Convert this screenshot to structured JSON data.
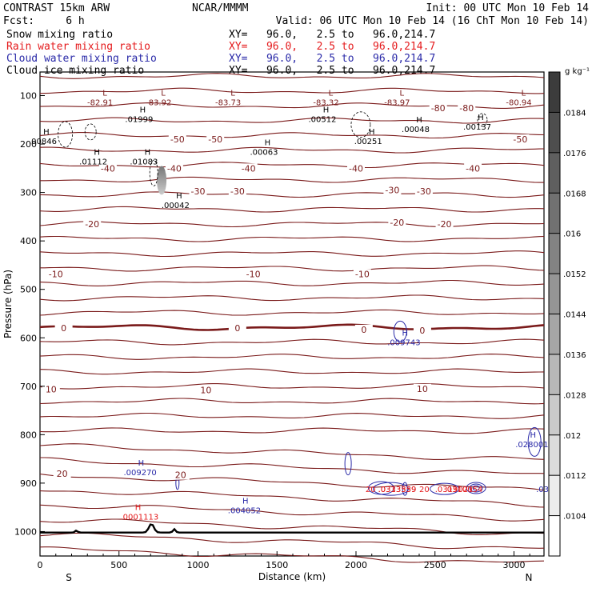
{
  "header": {
    "model": "CONTRAST 15km ARW",
    "org": "NCAR/MMMM",
    "init": "Init: 00 UTC Mon 10 Feb 14",
    "fcst": "Fcst:     6 h",
    "valid": "Valid: 06 UTC Mon 10 Feb 14 (16 ChT Mon 10 Feb 14)",
    "xy": "XY=   96.0,   2.5 to   96.0,214.7"
  },
  "legend": [
    {
      "label": "Snow mixing ratio",
      "color": "#000000"
    },
    {
      "label": "Rain water mixing ratio",
      "color": "#e41a1c"
    },
    {
      "label": "Cloud water mixing ratio",
      "color": "#2a2aa8"
    },
    {
      "label": "Cloud ice mixing ratio",
      "color": "#000000"
    }
  ],
  "colors": {
    "temperature": "#7a1a1a",
    "rain": "#e41a1c",
    "cloudwater": "#2a2aa8",
    "snow": "#000000",
    "terrain": "#000000"
  },
  "chart_data": {
    "type": "contour",
    "xlabel": "Distance (km)",
    "ylabel": "Pressure (hPa)",
    "xlim": [
      0,
      3190
    ],
    "ylim": [
      1040,
      50
    ],
    "x_ticks": [
      0,
      500,
      1000,
      1500,
      2000,
      2500,
      3000
    ],
    "x_tick_labels": [
      "0",
      "500",
      "1000",
      "1500",
      "2000",
      "2500",
      "3000"
    ],
    "y_ticks": [
      100,
      200,
      300,
      400,
      500,
      600,
      700,
      800,
      900,
      1000
    ],
    "y_tick_labels": [
      "100",
      "200",
      "300",
      "400",
      "500",
      "600",
      "700",
      "800",
      "900",
      "1000"
    ],
    "x_end_labels": {
      "left": "S",
      "right": "N"
    },
    "colorbar": {
      "unit": "g kg⁻¹",
      "ticks": [
        0.0184,
        0.0176,
        0.0168,
        0.016,
        0.0152,
        0.0144,
        0.0136,
        0.0128,
        0.012,
        0.0112,
        0.0104
      ],
      "tick_labels": [
        ".0184",
        ".0176",
        ".0168",
        ".016",
        ".0152",
        ".0144",
        ".0136",
        ".0128",
        ".012",
        ".0112",
        ".0104"
      ]
    },
    "temperature_contour_labels": [
      {
        "text": "-80",
        "x": 2520,
        "p": 126
      },
      {
        "text": "-80",
        "x": 2700,
        "p": 126
      },
      {
        "text": "-50",
        "x": 870,
        "p": 190
      },
      {
        "text": "-50",
        "x": 1110,
        "p": 190
      },
      {
        "text": "-50",
        "x": 3040,
        "p": 190
      },
      {
        "text": "-40",
        "x": 430,
        "p": 250
      },
      {
        "text": "-40",
        "x": 850,
        "p": 250
      },
      {
        "text": "-40",
        "x": 1320,
        "p": 250
      },
      {
        "text": "-40",
        "x": 2000,
        "p": 250
      },
      {
        "text": "-40",
        "x": 2740,
        "p": 250
      },
      {
        "text": "-30",
        "x": 1000,
        "p": 297
      },
      {
        "text": "-30",
        "x": 1250,
        "p": 297
      },
      {
        "text": "-30",
        "x": 2230,
        "p": 295
      },
      {
        "text": "-30",
        "x": 2430,
        "p": 297
      },
      {
        "text": "-20",
        "x": 330,
        "p": 365
      },
      {
        "text": "-20",
        "x": 2260,
        "p": 362
      },
      {
        "text": "-20",
        "x": 2560,
        "p": 365
      },
      {
        "text": "-10",
        "x": 100,
        "p": 468
      },
      {
        "text": "-10",
        "x": 1350,
        "p": 468
      },
      {
        "text": "-10",
        "x": 2040,
        "p": 468
      },
      {
        "text": "0",
        "x": 150,
        "p": 580
      },
      {
        "text": "0",
        "x": 1250,
        "p": 580
      },
      {
        "text": "0",
        "x": 2050,
        "p": 583
      },
      {
        "text": "0",
        "x": 2420,
        "p": 585
      },
      {
        "text": "10",
        "x": 70,
        "p": 706
      },
      {
        "text": "10",
        "x": 1050,
        "p": 708
      },
      {
        "text": "10",
        "x": 2420,
        "p": 705
      },
      {
        "text": "20",
        "x": 140,
        "p": 880
      },
      {
        "text": "20",
        "x": 890,
        "p": 883
      }
    ],
    "extrema_labels": [
      {
        "kind": "L",
        "value": "-82.91",
        "x": 390,
        "p": 110,
        "color": "temperature"
      },
      {
        "kind": "L",
        "value": "-83.92",
        "x": 760,
        "p": 110,
        "color": "temperature"
      },
      {
        "kind": "L",
        "value": "-83.73",
        "x": 1200,
        "p": 110,
        "color": "temperature"
      },
      {
        "kind": "L",
        "value": "-83.32",
        "x": 1820,
        "p": 110,
        "color": "temperature"
      },
      {
        "kind": "L",
        "value": "-83.97",
        "x": 2270,
        "p": 110,
        "color": "temperature"
      },
      {
        "kind": "L",
        "value": "-80.94",
        "x": 3040,
        "p": 110,
        "color": "temperature"
      },
      {
        "kind": "H",
        "value": ".01999",
        "x": 630,
        "p": 145,
        "color": "snow"
      },
      {
        "kind": "H",
        "value": ".00512",
        "x": 1790,
        "p": 145,
        "color": "snow"
      },
      {
        "kind": "H",
        "value": ".00048",
        "x": 2380,
        "p": 165,
        "color": "snow"
      },
      {
        "kind": "H",
        "value": ".00137",
        "x": 2770,
        "p": 160,
        "color": "snow"
      },
      {
        "kind": "H",
        "value": ".00846",
        "x": 20,
        "p": 190,
        "color": "snow"
      },
      {
        "kind": "H",
        "value": ".00251",
        "x": 2080,
        "p": 190,
        "color": "snow"
      },
      {
        "kind": "H",
        "value": ".00063",
        "x": 1420,
        "p": 212,
        "color": "snow"
      },
      {
        "kind": "H",
        "value": ".01112",
        "x": 340,
        "p": 232,
        "color": "snow"
      },
      {
        "kind": "H",
        "value": ".01083",
        "x": 660,
        "p": 232,
        "color": "snow"
      },
      {
        "kind": "H",
        "value": ".00042",
        "x": 860,
        "p": 322,
        "color": "snow"
      },
      {
        "kind": "H",
        "value": ".009743",
        "x": 2290,
        "p": 605,
        "color": "cloudwater"
      },
      {
        "kind": "H",
        "value": ".028001",
        "x": 3100,
        "p": 816,
        "color": "cloudwater"
      },
      {
        "kind": "H",
        "value": ".009270",
        "x": 620,
        "p": 874,
        "color": "cloudwater"
      },
      {
        "kind": "H",
        "value": ".004052",
        "x": 1280,
        "p": 952,
        "color": "cloudwater"
      },
      {
        "kind": "H",
        "value": ".0001113",
        "x": 600,
        "p": 965,
        "color": "rain"
      }
    ],
    "lower_cluster_labels": [
      "20",
      ".0333559",
      ".0313339",
      "20",
      ".0319021",
      ".0310054",
      ".03"
    ]
  }
}
